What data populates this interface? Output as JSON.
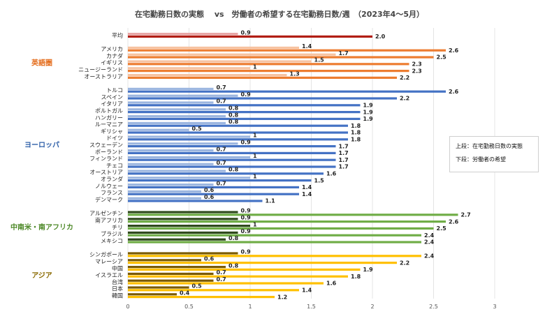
{
  "chart_data": {
    "type": "bar",
    "orientation": "horizontal",
    "title": "在宅勤務日数の実態　 vs　労働者の希望する在宅勤務日数/週　（2023年4～5月）",
    "xlim": [
      0,
      3
    ],
    "x_ticks": [
      "0",
      "0.5",
      "1",
      "1.5",
      "2",
      "2.5",
      "3"
    ],
    "grid": "vertical",
    "legend_notes": [
      "上段：在宅勤務日数の実態",
      "下段：労働者の希望"
    ],
    "series": [
      {
        "name": "在宅勤務日数の実態"
      },
      {
        "name": "労働者の希望"
      }
    ],
    "groups": [
      {
        "region": "",
        "color_actual": "#e8a5a5",
        "color_wish": "#b11d14",
        "items": [
          {
            "label": "平均",
            "actual": 0.9,
            "wish": 2.0,
            "actual_text": "0.9",
            "wish_text": "2.0"
          }
        ]
      },
      {
        "region": "英語圏",
        "region_color": "#e46c1b",
        "color_actual": "#f7c2a0",
        "color_wish": "#ed7d31",
        "items": [
          {
            "label": "アメリカ",
            "actual": 1.4,
            "wish": 2.6,
            "actual_text": "1.4",
            "wish_text": "2.6"
          },
          {
            "label": "カナダ",
            "actual": 1.7,
            "wish": 2.5,
            "actual_text": "1.7",
            "wish_text": "2.5"
          },
          {
            "label": "イギリス",
            "actual": 1.5,
            "wish": 2.3,
            "actual_text": "1.5",
            "wish_text": "2.3"
          },
          {
            "label": "ニュージーランド",
            "actual": 1.0,
            "wish": 2.3,
            "actual_text": "1",
            "wish_text": "2.3"
          },
          {
            "label": "オーストラリア",
            "actual": 1.3,
            "wish": 2.2,
            "actual_text": "1.3",
            "wish_text": "2.2"
          }
        ]
      },
      {
        "region": "ヨーロッパ",
        "region_color": "#2e5fa8",
        "color_actual": "#9cb6e0",
        "color_wish": "#4472c4",
        "items": [
          {
            "label": "トルコ",
            "actual": 0.7,
            "wish": 2.6,
            "actual_text": "0.7",
            "wish_text": "2.6"
          },
          {
            "label": "スペイン",
            "actual": 0.9,
            "wish": 2.2,
            "actual_text": "0.9",
            "wish_text": "2.2"
          },
          {
            "label": "イタリア",
            "actual": 0.7,
            "wish": 1.9,
            "actual_text": "0.7",
            "wish_text": "1.9"
          },
          {
            "label": "ポルトガル",
            "actual": 0.8,
            "wish": 1.9,
            "actual_text": "0.8",
            "wish_text": "1.9"
          },
          {
            "label": "ハンガリー",
            "actual": 0.8,
            "wish": 1.9,
            "actual_text": "0.8",
            "wish_text": "1.9"
          },
          {
            "label": "ルーマニア",
            "actual": 0.8,
            "wish": 1.8,
            "actual_text": "0.8",
            "wish_text": "1.8"
          },
          {
            "label": "ギリシャ",
            "actual": 0.5,
            "wish": 1.8,
            "actual_text": "0.5",
            "wish_text": "1.8"
          },
          {
            "label": "ドイツ",
            "actual": 1.0,
            "wish": 1.8,
            "actual_text": "1",
            "wish_text": "1.8"
          },
          {
            "label": "スウェーデン",
            "actual": 0.9,
            "wish": 1.7,
            "actual_text": "0.9",
            "wish_text": "1.7"
          },
          {
            "label": "ポーランド",
            "actual": 0.7,
            "wish": 1.7,
            "actual_text": "0.7",
            "wish_text": "1.7"
          },
          {
            "label": "フィンランド",
            "actual": 1.0,
            "wish": 1.7,
            "actual_text": "1",
            "wish_text": "1.7"
          },
          {
            "label": "チェコ",
            "actual": 0.7,
            "wish": 1.7,
            "actual_text": "0.7",
            "wish_text": "1.7"
          },
          {
            "label": "オーストリア",
            "actual": 0.8,
            "wish": 1.6,
            "actual_text": "0.8",
            "wish_text": "1.6"
          },
          {
            "label": "オランダ",
            "actual": 1.0,
            "wish": 1.5,
            "actual_text": "1",
            "wish_text": "1.5"
          },
          {
            "label": "ノルウェー",
            "actual": 0.7,
            "wish": 1.4,
            "actual_text": "0.7",
            "wish_text": "1.4"
          },
          {
            "label": "フランス",
            "actual": 0.6,
            "wish": 1.4,
            "actual_text": "0.6",
            "wish_text": "1.4"
          },
          {
            "label": "デンマーク",
            "actual": 0.6,
            "wish": 1.1,
            "actual_text": "0.6",
            "wish_text": "1.1"
          }
        ]
      },
      {
        "region": "中南米・南アフリカ",
        "region_color": "#4f8a2a",
        "color_actual": "#2f4a1c",
        "color_wish": "#70ad47",
        "items": [
          {
            "label": "アルゼンチン",
            "actual": 0.9,
            "wish": 2.7,
            "actual_text": "0.9",
            "wish_text": "2.7"
          },
          {
            "label": "南アフリカ",
            "actual": 0.9,
            "wish": 2.6,
            "actual_text": "0.9",
            "wish_text": "2.6"
          },
          {
            "label": "チリ",
            "actual": 1.0,
            "wish": 2.5,
            "actual_text": "1",
            "wish_text": "2.5"
          },
          {
            "label": "ブラジル",
            "actual": 0.9,
            "wish": 2.4,
            "actual_text": "0.9",
            "wish_text": "2.4"
          },
          {
            "label": "メキシコ",
            "actual": 0.8,
            "wish": 2.4,
            "actual_text": "0.8",
            "wish_text": "2.4"
          }
        ]
      },
      {
        "region": "アジア",
        "region_color": "#8a6a00",
        "color_actual": "#7a5a00",
        "color_wish": "#ffc000",
        "items": [
          {
            "label": "シンガポール",
            "actual": 0.9,
            "wish": 2.4,
            "actual_text": "0.9",
            "wish_text": "2.4"
          },
          {
            "label": "マレーシア",
            "actual": 0.6,
            "wish": 2.2,
            "actual_text": "0.6",
            "wish_text": "2.2"
          },
          {
            "label": "中国",
            "actual": 0.8,
            "wish": 1.9,
            "actual_text": "0.8",
            "wish_text": "1.9"
          },
          {
            "label": "イスラエル",
            "actual": 0.7,
            "wish": 1.8,
            "actual_text": "0.7",
            "wish_text": "1.8"
          },
          {
            "label": "台湾",
            "actual": 0.7,
            "wish": 1.6,
            "actual_text": "0.7",
            "wish_text": "1.6"
          },
          {
            "label": "日本",
            "actual": 0.5,
            "wish": 1.4,
            "actual_text": "0.5",
            "wish_text": "1.4"
          },
          {
            "label": "韓国",
            "actual": 0.4,
            "wish": 1.2,
            "actual_text": "0.4",
            "wish_text": "1.2"
          }
        ]
      }
    ]
  }
}
